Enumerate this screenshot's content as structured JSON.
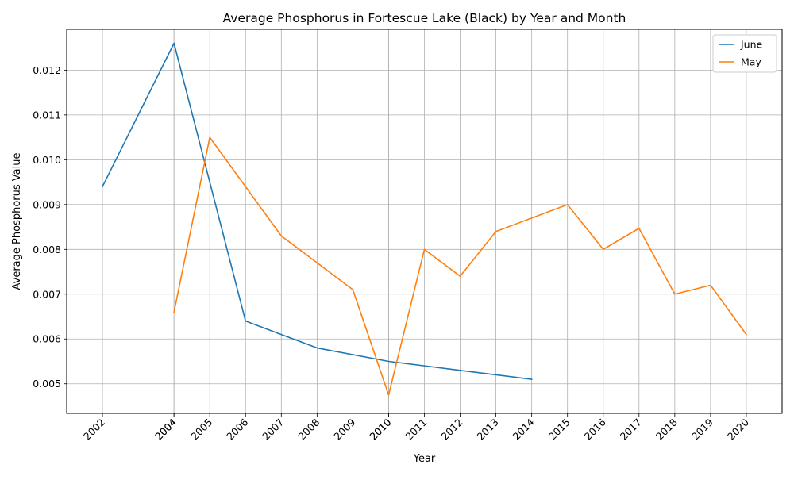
{
  "chart_data": {
    "type": "line",
    "title": "Average Phosphorus in Fortescue Lake (Black) by Year and Month",
    "xlabel": "Year",
    "ylabel": "Average Phosphorus Value",
    "xlim": [
      2001.0,
      2021.0
    ],
    "ylim": [
      0.00434,
      0.01291
    ],
    "x_tick_labels": [
      "2002",
      "2004",
      "2004",
      "2005",
      "2006",
      "2007",
      "2008",
      "2009",
      "2010",
      "2010",
      "2011",
      "2012",
      "2013",
      "2014",
      "2015",
      "2016",
      "2017",
      "2018",
      "2019",
      "2020"
    ],
    "y_ticks": [
      0.005,
      0.006,
      0.007,
      0.008,
      0.009,
      0.01,
      0.011,
      0.012
    ],
    "y_tick_labels": [
      "0.005",
      "0.006",
      "0.007",
      "0.008",
      "0.009",
      "0.010",
      "0.011",
      "0.012"
    ],
    "grid": true,
    "legend_position": "top-right",
    "series": [
      {
        "name": "June",
        "color": "#1f77b4",
        "points": [
          [
            2002,
            0.0094
          ],
          [
            2004,
            0.0126
          ],
          [
            2006,
            0.0064
          ],
          [
            2007,
            0.0061
          ],
          [
            2008,
            0.0058
          ],
          [
            2010,
            0.0055
          ],
          [
            2011,
            0.0054
          ],
          [
            2012,
            0.0053
          ],
          [
            2014,
            0.0051
          ]
        ]
      },
      {
        "name": "May",
        "color": "#ff7f0e",
        "points": [
          [
            2004,
            0.0066
          ],
          [
            2005,
            0.0105
          ],
          [
            2006,
            0.0094
          ],
          [
            2007,
            0.0083
          ],
          [
            2009,
            0.0071
          ],
          [
            2010,
            0.00475
          ],
          [
            2011,
            0.008
          ],
          [
            2012,
            0.0074
          ],
          [
            2013,
            0.0084
          ],
          [
            2015,
            0.009
          ],
          [
            2016,
            0.008
          ],
          [
            2017,
            0.00847
          ],
          [
            2018,
            0.007
          ],
          [
            2019,
            0.0072
          ],
          [
            2020,
            0.0061
          ]
        ]
      }
    ]
  }
}
